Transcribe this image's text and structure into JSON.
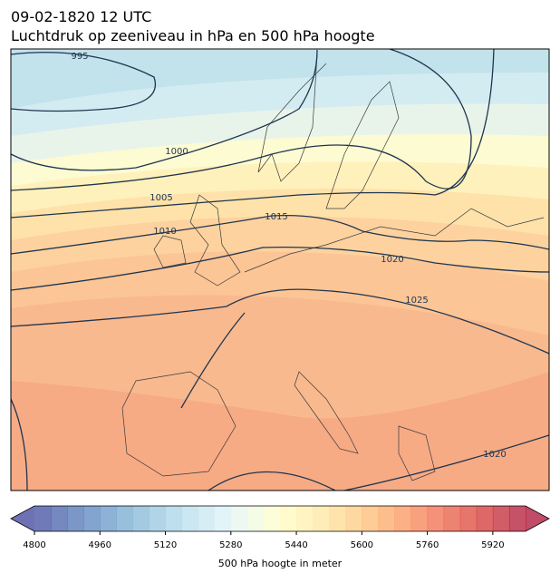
{
  "header": {
    "date": "09-02-1820 12 UTC",
    "title": "Luchtdruk op zeeniveau in hPa en 500 hPa hoogte"
  },
  "isobars": [
    {
      "label": "995"
    },
    {
      "label": "1000"
    },
    {
      "label": "1005"
    },
    {
      "label": "1010"
    },
    {
      "label": "1015"
    },
    {
      "label": "1020"
    },
    {
      "label": "1025"
    },
    {
      "label": "1020"
    }
  ],
  "colorbar": {
    "min": 4800,
    "max": 6000,
    "step": 40,
    "ticks": [
      4800,
      4960,
      5120,
      5280,
      5440,
      5600,
      5760,
      5920
    ],
    "label": "500 hPa hoogte in meter",
    "colors": [
      "#313695",
      "#4575b4",
      "#74add1",
      "#abd9e9",
      "#e0f3f8",
      "#ffffbf",
      "#fee090",
      "#fdae61",
      "#f46d43",
      "#d73027",
      "#a50026"
    ],
    "alpha": 0.7
  }
}
